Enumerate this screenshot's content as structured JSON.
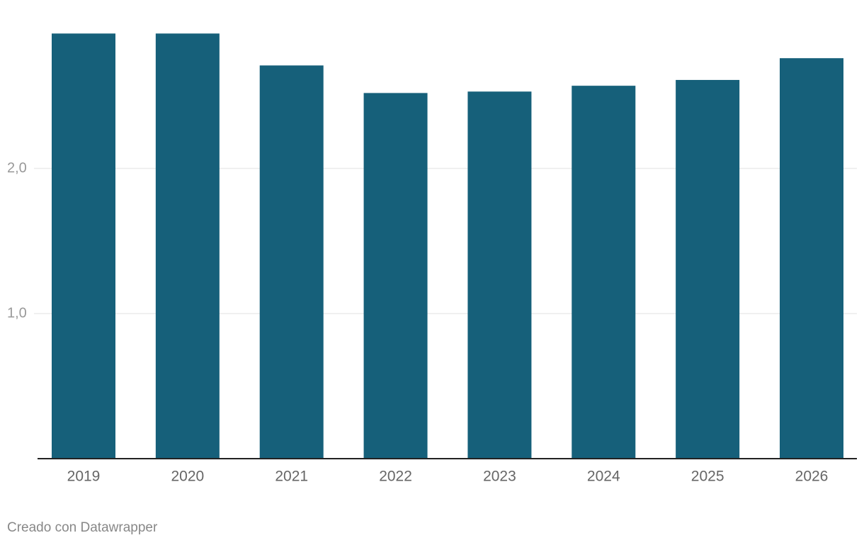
{
  "chart_data": {
    "type": "bar",
    "categories": [
      "2019",
      "2020",
      "2021",
      "2022",
      "2023",
      "2024",
      "2025",
      "2026"
    ],
    "values": [
      2.93,
      2.93,
      2.71,
      2.52,
      2.53,
      2.57,
      2.61,
      2.76
    ],
    "color": "#16607a",
    "ylim": [
      0,
      3
    ],
    "yticks": [
      {
        "value": 1,
        "label": "1,0"
      },
      {
        "value": 2,
        "label": "2,0"
      }
    ],
    "grid": true,
    "credit": "Creado con Datawrapper"
  }
}
